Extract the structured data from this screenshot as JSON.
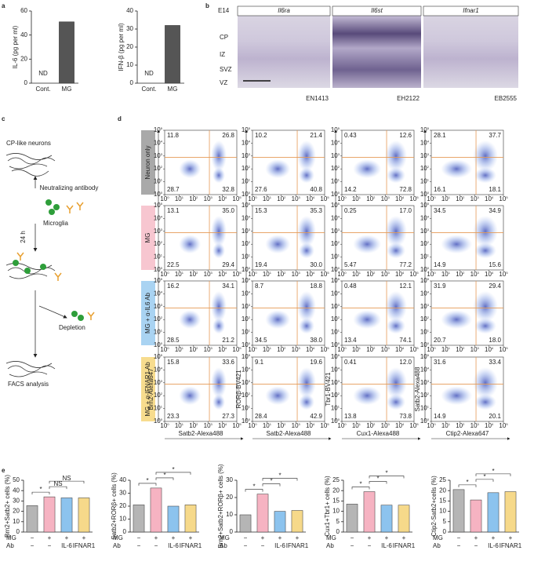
{
  "panel_labels": [
    "a",
    "b",
    "c",
    "d",
    "e"
  ],
  "panel_a": {
    "charts": [
      {
        "y_label": "IL-6 (pg per ml)",
        "categories": [
          "Cont.",
          "MG"
        ],
        "values": [
          null,
          51
        ],
        "na_label": "ND",
        "ylim": [
          0,
          60
        ],
        "yticks": [
          0,
          20,
          40,
          60
        ],
        "color": "#555555"
      },
      {
        "y_label": "IFN-β (pg per ml)",
        "categories": [
          "Cont.",
          "MG"
        ],
        "values": [
          null,
          32
        ],
        "na_label": "ND",
        "ylim": [
          0,
          40
        ],
        "yticks": [
          0,
          10,
          20,
          30,
          40
        ],
        "color": "#555555"
      }
    ]
  },
  "panel_b": {
    "stage": "E14",
    "genes": [
      "Il6ra",
      "Il6st",
      "Ifnar1"
    ],
    "layers": [
      "CP",
      "IZ",
      "SVZ",
      "VZ"
    ],
    "probe_ids": [
      "EN1413",
      "EH2122",
      "EB2555"
    ]
  },
  "panel_c": {
    "neurons": "CP-like neurons",
    "antibody": "Neutralizing antibody",
    "microglia": "Microglia",
    "time": "24 h",
    "depletion": "Depletion",
    "analysis": "FACS analysis"
  },
  "panel_d": {
    "rows": [
      {
        "label": "Neuron only",
        "color": "#a9a9a9"
      },
      {
        "label": "MG",
        "color": "#f7c6d0"
      },
      {
        "label": "MG + α-IL6 Ab",
        "color": "#a9d3f2"
      },
      {
        "label": "MG + α-IFNAR1 Ab",
        "color": "#f7dc8e"
      }
    ],
    "y_labels": [
      "Brn2-Alexa647",
      "RORβ-BV421",
      "Tbr1-BV421",
      "Satb2-Alexa488"
    ],
    "x_labels": [
      "Satb2-Alexa488",
      "Satb2-Alexa488",
      "Cux1-Alexa488",
      "Ctip2-Alexa647"
    ],
    "axis_base": "10",
    "axis_exponents": [
      0,
      1,
      2,
      3,
      4,
      5
    ],
    "quadrants": [
      [
        [
          "11.8",
          "26.8",
          "28.7",
          "32.8"
        ],
        [
          "10.2",
          "21.4",
          "27.6",
          "40.8"
        ],
        [
          "0.43",
          "12.6",
          "14.2",
          "72.8"
        ],
        [
          "28.1",
          "37.7",
          "16.1",
          "18.1"
        ]
      ],
      [
        [
          "13.1",
          "35.0",
          "22.5",
          "29.4"
        ],
        [
          "15.3",
          "35.3",
          "19.4",
          "30.0"
        ],
        [
          "0.25",
          "17.0",
          "5.47",
          "77.2"
        ],
        [
          "34.5",
          "34.9",
          "14.9",
          "15.6"
        ]
      ],
      [
        [
          "16.2",
          "34.1",
          "28.5",
          "21.2"
        ],
        [
          "8.7",
          "18.8",
          "34.5",
          "38.0"
        ],
        [
          "0.48",
          "12.1",
          "13.4",
          "74.1"
        ],
        [
          "31.9",
          "29.4",
          "20.7",
          "18.0"
        ]
      ],
      [
        [
          "15.8",
          "33.6",
          "23.3",
          "27.3"
        ],
        [
          "9.1",
          "19.6",
          "28.4",
          "42.9"
        ],
        [
          "0.41",
          "12.0",
          "13.8",
          "73.8"
        ],
        [
          "31.6",
          "33.4",
          "14.9",
          "20.1"
        ]
      ]
    ]
  },
  "panel_e": {
    "colors": [
      "#b5b5b5",
      "#f6b3c2",
      "#8cc3ee",
      "#f6d98a"
    ],
    "group_rows": [
      {
        "label": "MG",
        "values": [
          "−",
          "+",
          "+",
          "+"
        ]
      },
      {
        "label": "Ab",
        "values": [
          "−",
          "−",
          "IL-6",
          "IFNAR1"
        ]
      }
    ],
    "charts": [
      {
        "y_label": "Brn2+Satb2+ cells (%)",
        "values": [
          25.5,
          34,
          33,
          33
        ],
        "ylim": [
          0,
          50
        ],
        "yticks": [
          0,
          10,
          20,
          30,
          40,
          50
        ],
        "sig": [
          {
            "from": 0,
            "to": 1,
            "label": "*"
          },
          {
            "from": 1,
            "to": 2,
            "label": "NS"
          },
          {
            "from": 1,
            "to": 3,
            "label": "NS"
          }
        ]
      },
      {
        "y_label": "Satb2+RORβ+ cells (%)",
        "values": [
          21,
          34,
          20,
          21
        ],
        "ylim": [
          0,
          40
        ],
        "yticks": [
          0,
          10,
          20,
          30,
          40
        ],
        "sig": [
          {
            "from": 0,
            "to": 1,
            "label": "*"
          },
          {
            "from": 1,
            "to": 2,
            "label": "*"
          },
          {
            "from": 1,
            "to": 3,
            "label": "*"
          }
        ]
      },
      {
        "y_label": "Brn2+Satb2+RORβ+ cells (%)",
        "values": [
          10,
          22,
          12,
          12.5
        ],
        "ylim": [
          0,
          30
        ],
        "yticks": [
          0,
          10,
          20,
          30
        ],
        "sig": [
          {
            "from": 0,
            "to": 1,
            "label": "*"
          },
          {
            "from": 1,
            "to": 2,
            "label": "*"
          },
          {
            "from": 1,
            "to": 3,
            "label": "*"
          }
        ]
      },
      {
        "y_label": "Cux1+Tbr1+ cells (%)",
        "values": [
          13.5,
          19.5,
          13,
          13
        ],
        "ylim": [
          0,
          25
        ],
        "yticks": [
          0,
          5,
          10,
          15,
          20,
          25
        ],
        "sig": [
          {
            "from": 0,
            "to": 1,
            "label": "*"
          },
          {
            "from": 1,
            "to": 2,
            "label": "*"
          },
          {
            "from": 1,
            "to": 3,
            "label": "*"
          }
        ]
      },
      {
        "y_label": "Ctip2-Satb2+cells (%)",
        "values": [
          20.5,
          15.5,
          19,
          19.5
        ],
        "ylim": [
          0,
          25
        ],
        "yticks": [
          0,
          5,
          10,
          15,
          20,
          25
        ],
        "sig": [
          {
            "from": 0,
            "to": 1,
            "label": "*"
          },
          {
            "from": 1,
            "to": 2,
            "label": "*"
          },
          {
            "from": 1,
            "to": 3,
            "label": "*"
          }
        ]
      }
    ]
  }
}
